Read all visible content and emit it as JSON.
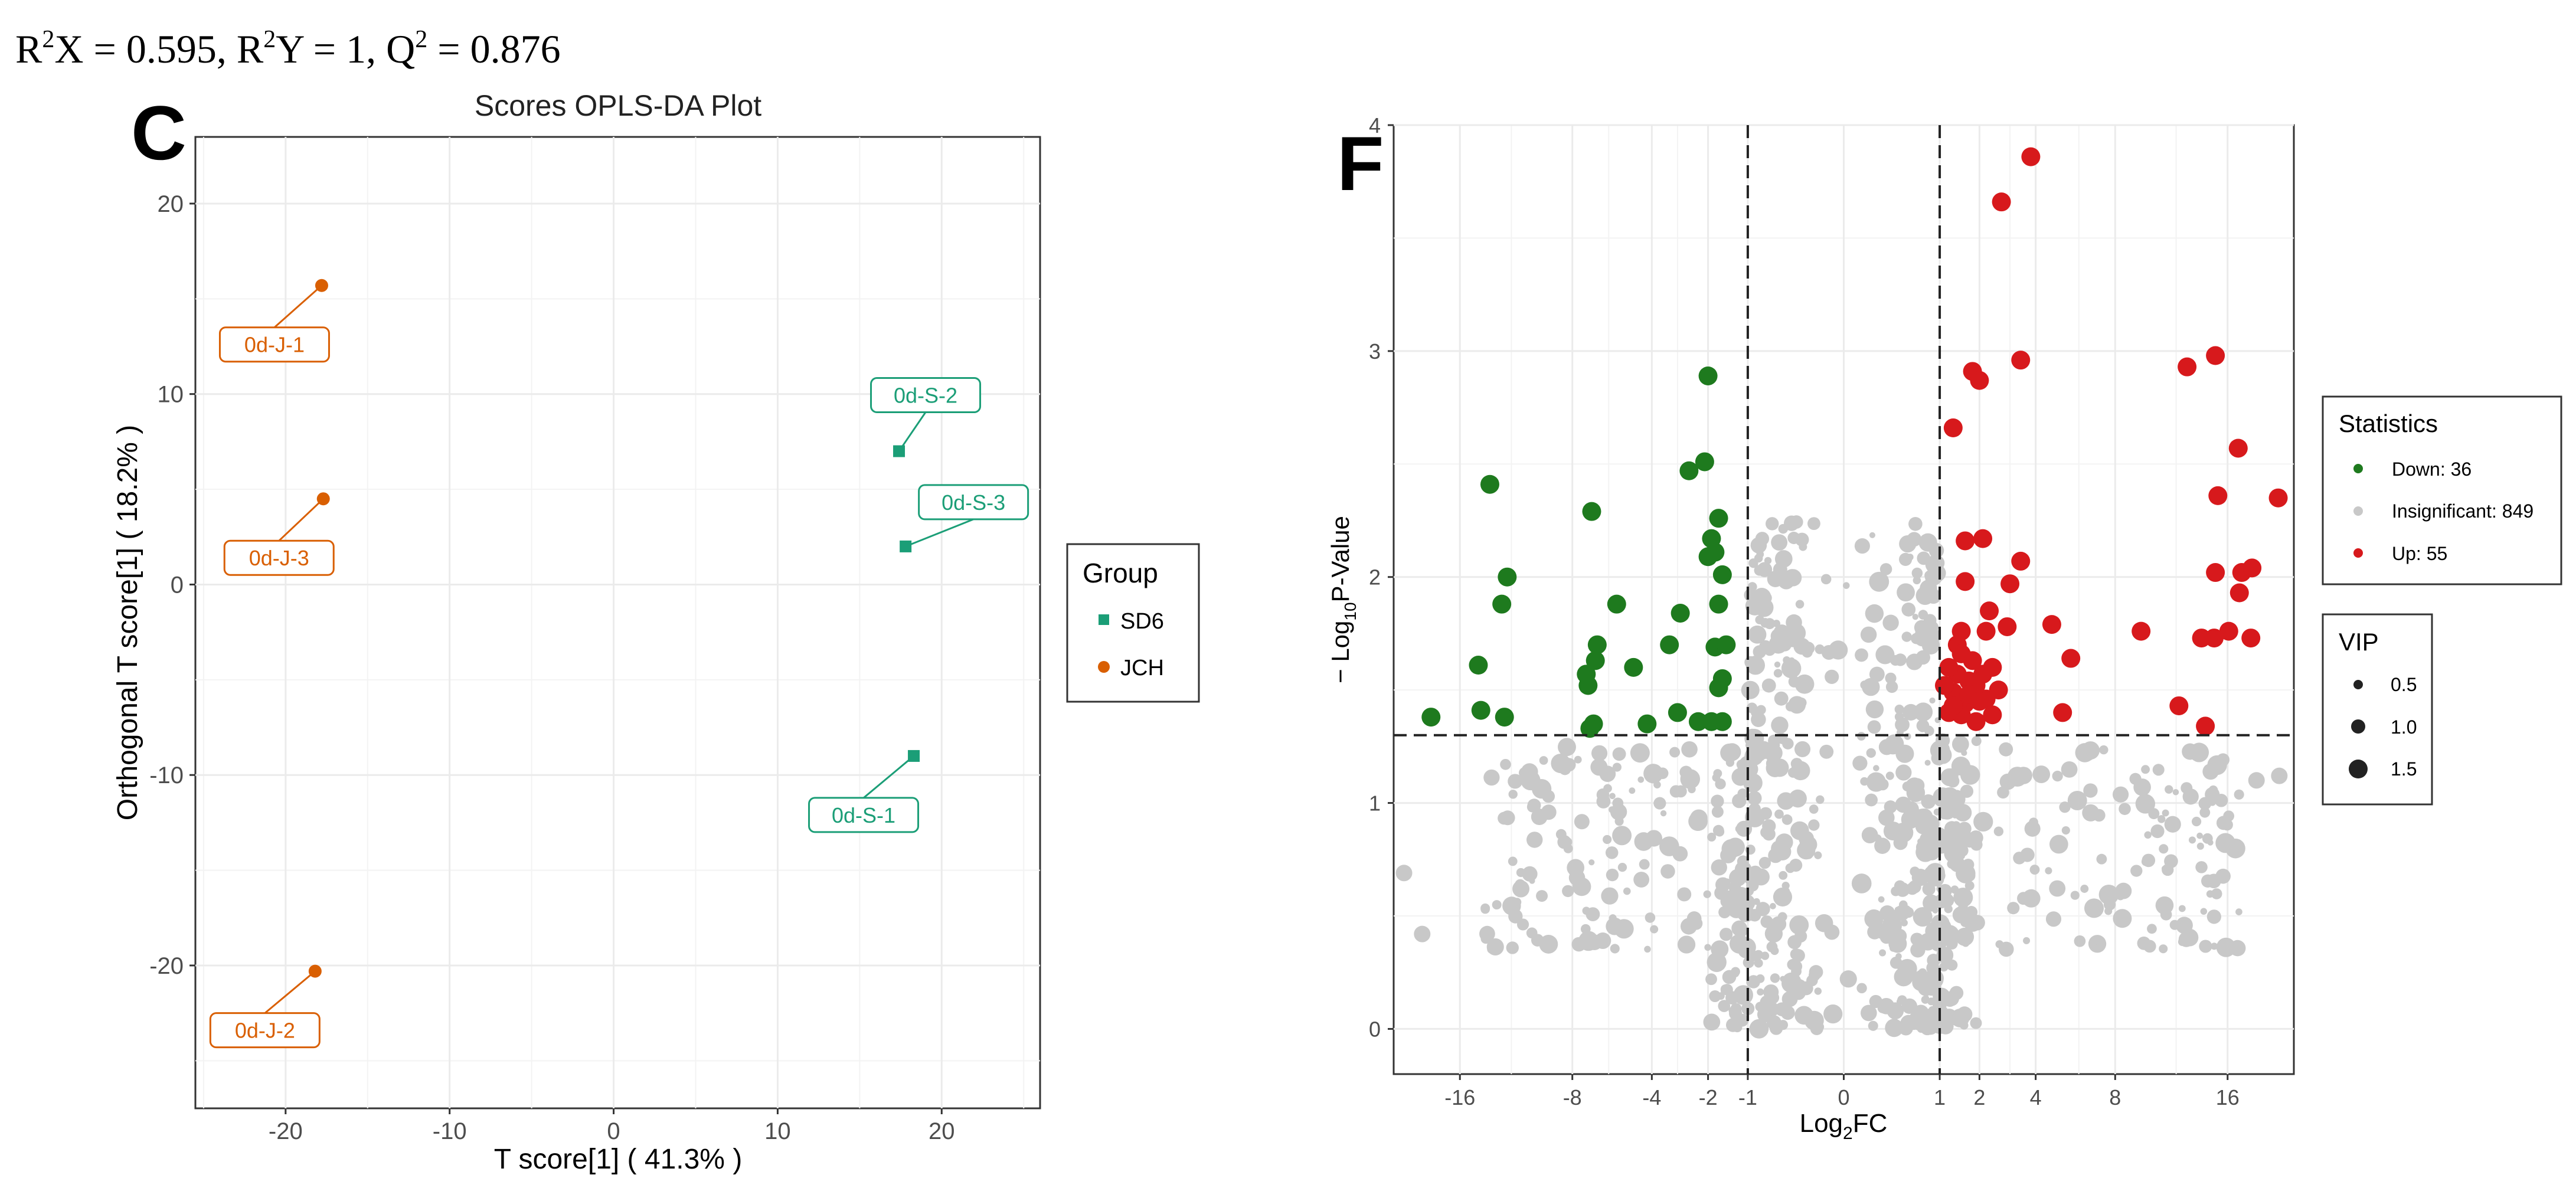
{
  "stats_text": {
    "r2x_label": "R",
    "r2x_sup": "2",
    "r2x_rest": "X = 0.595, ",
    "r2y_label": "R",
    "r2y_sup": "2",
    "r2y_rest": "Y = 1, ",
    "q2_label": "Q",
    "q2_sup": "2",
    "q2_rest": " = 0.876"
  },
  "panel_c_letter": "C",
  "panel_f_letter": "F",
  "colors": {
    "sd6": "#1b9e77",
    "jch": "#d95f02",
    "down": "#1e7a1e",
    "insignificant": "#c8c8c8",
    "up": "#d7191c",
    "grid": "#ebebeb",
    "axis": "#333333"
  },
  "chart_data": [
    {
      "type": "scatter",
      "title": "Scores OPLS-DA Plot",
      "xlabel": "T score[1] ( 41.3% )",
      "ylabel": "Orthogonal T score[1] ( 18.2% )",
      "xlim": [
        -25.5,
        26
      ],
      "ylim": [
        -27.5,
        23.5
      ],
      "xticks": [
        -20,
        -10,
        0,
        10,
        20
      ],
      "yticks": [
        20,
        10,
        0,
        -10,
        -20
      ],
      "xtick_labels": [
        "-20",
        "-10",
        "0",
        "10",
        "20"
      ],
      "ytick_labels": [
        "20",
        "10",
        "0",
        "-10",
        "-20"
      ],
      "grid": true,
      "legend_title": "Group",
      "legend_position": "right",
      "series": [
        {
          "name": "SD6",
          "marker": "square",
          "points": [
            {
              "label": "0d-S-2",
              "x": 17.4,
              "y": 7.0
            },
            {
              "label": "0d-S-3",
              "x": 17.8,
              "y": 2.0
            },
            {
              "label": "0d-S-1",
              "x": 18.3,
              "y": -9.0
            }
          ]
        },
        {
          "name": "JCH",
          "marker": "circle",
          "points": [
            {
              "label": "0d-J-1",
              "x": -17.8,
              "y": 15.7
            },
            {
              "label": "0d-J-3",
              "x": -17.7,
              "y": 4.5
            },
            {
              "label": "0d-J-2",
              "x": -18.2,
              "y": -20.3
            }
          ]
        }
      ]
    },
    {
      "type": "scatter",
      "title": "",
      "xlabel_main": "Log",
      "xlabel_sub": "2",
      "xlabel_rest": "FC",
      "ylabel_main": "− Log",
      "ylabel_sub": "10",
      "ylabel_rest": "P-Value",
      "xlim": [
        -22,
        22
      ],
      "ylim": [
        -0.2,
        4.0
      ],
      "xticks": [
        -16,
        -8,
        -4,
        -2,
        -1,
        0,
        1,
        2,
        4,
        8,
        16
      ],
      "xtick_labels": [
        "-16",
        "-8",
        "-4",
        "-2",
        "-1",
        "0",
        "1",
        "2",
        "4",
        "8",
        "16"
      ],
      "yticks": [
        0,
        1,
        2,
        3,
        4
      ],
      "ytick_labels": [
        "0",
        "1",
        "2",
        "3",
        "4"
      ],
      "thresholds": {
        "fc": [
          -1,
          1
        ],
        "p_value_log": 1.3
      },
      "grid": true,
      "legend_position": "right",
      "legend_statistics_title": "Statistics",
      "legend_vip_title": "VIP",
      "legend_statistics": [
        {
          "key": "down",
          "label": "Down: 36"
        },
        {
          "key": "insignificant",
          "label": "Insignificant: 849"
        },
        {
          "key": "up",
          "label": "Up: 55"
        }
      ],
      "legend_vip": [
        {
          "size": 0.5,
          "label": "0.5"
        },
        {
          "size": 1.0,
          "label": "1.0"
        },
        {
          "size": 1.5,
          "label": "1.5"
        }
      ],
      "series": [
        {
          "name": "Down",
          "points": [
            [
              -18.5,
              1.38
            ],
            [
              -13.6,
              2.41
            ],
            [
              -14.5,
              1.61
            ],
            [
              -14.3,
              1.41
            ],
            [
              -12.3,
              2.0
            ],
            [
              -12.7,
              1.88
            ],
            [
              -12.5,
              1.38
            ],
            [
              -6.9,
              2.29
            ],
            [
              -6.6,
              1.7
            ],
            [
              -6.7,
              1.63
            ],
            [
              -7.2,
              1.57
            ],
            [
              -7.1,
              1.52
            ],
            [
              -6.8,
              1.35
            ],
            [
              -7.0,
              1.33
            ],
            [
              -5.6,
              1.88
            ],
            [
              -4.8,
              1.6
            ],
            [
              -4.2,
              1.35
            ],
            [
              -3.3,
              1.7
            ],
            [
              -2.9,
              1.84
            ],
            [
              -2.6,
              2.47
            ],
            [
              -2.1,
              2.51
            ],
            [
              -2.0,
              2.89
            ],
            [
              -1.9,
              2.17
            ],
            [
              -2.0,
              2.09
            ],
            [
              -1.7,
              2.26
            ],
            [
              -1.8,
              2.11
            ],
            [
              -1.6,
              2.01
            ],
            [
              -1.7,
              1.88
            ],
            [
              -1.8,
              1.69
            ],
            [
              -1.6,
              1.55
            ],
            [
              -1.7,
              1.51
            ],
            [
              -1.5,
              1.7
            ],
            [
              -1.9,
              1.36
            ],
            [
              -2.3,
              1.36
            ],
            [
              -3.0,
              1.4
            ],
            [
              -1.6,
              1.36
            ]
          ]
        },
        {
          "name": "Up",
          "points": [
            [
              3.8,
              3.86
            ],
            [
              2.7,
              3.66
            ],
            [
              3.4,
              2.96
            ],
            [
              1.8,
              2.91
            ],
            [
              2.0,
              2.87
            ],
            [
              1.3,
              2.66
            ],
            [
              1.6,
              2.16
            ],
            [
              2.1,
              2.17
            ],
            [
              1.6,
              1.98
            ],
            [
              2.3,
              1.85
            ],
            [
              3.0,
              1.97
            ],
            [
              3.4,
              2.07
            ],
            [
              1.5,
              1.76
            ],
            [
              2.2,
              1.76
            ],
            [
              2.9,
              1.78
            ],
            [
              4.7,
              1.79
            ],
            [
              5.6,
              1.64
            ],
            [
              1.4,
              1.57
            ],
            [
              1.7,
              1.54
            ],
            [
              2.1,
              1.57
            ],
            [
              2.4,
              1.6
            ],
            [
              1.3,
              1.49
            ],
            [
              1.6,
              1.44
            ],
            [
              2.2,
              1.46
            ],
            [
              1.5,
              1.39
            ],
            [
              1.9,
              1.36
            ],
            [
              2.4,
              1.39
            ],
            [
              5.2,
              1.4
            ],
            [
              1.2,
              1.6
            ],
            [
              1.8,
              1.63
            ],
            [
              12.8,
              2.93
            ],
            [
              15.0,
              2.98
            ],
            [
              16.9,
              2.57
            ],
            [
              15.2,
              2.36
            ],
            [
              20.5,
              2.35
            ],
            [
              17.2,
              2.02
            ],
            [
              18.1,
              2.04
            ],
            [
              15.0,
              2.02
            ],
            [
              17.0,
              1.93
            ],
            [
              9.6,
              1.76
            ],
            [
              13.9,
              1.73
            ],
            [
              14.9,
              1.73
            ],
            [
              16.1,
              1.76
            ],
            [
              18.0,
              1.73
            ],
            [
              12.2,
              1.43
            ],
            [
              14.2,
              1.34
            ],
            [
              1.4,
              1.7
            ],
            [
              1.5,
              1.66
            ],
            [
              1.2,
              1.4
            ],
            [
              1.9,
              1.52
            ],
            [
              2.6,
              1.5
            ],
            [
              1.3,
              1.43
            ],
            [
              1.7,
              1.48
            ],
            [
              2.0,
              1.45
            ],
            [
              1.1,
              1.52
            ]
          ]
        }
      ]
    }
  ]
}
